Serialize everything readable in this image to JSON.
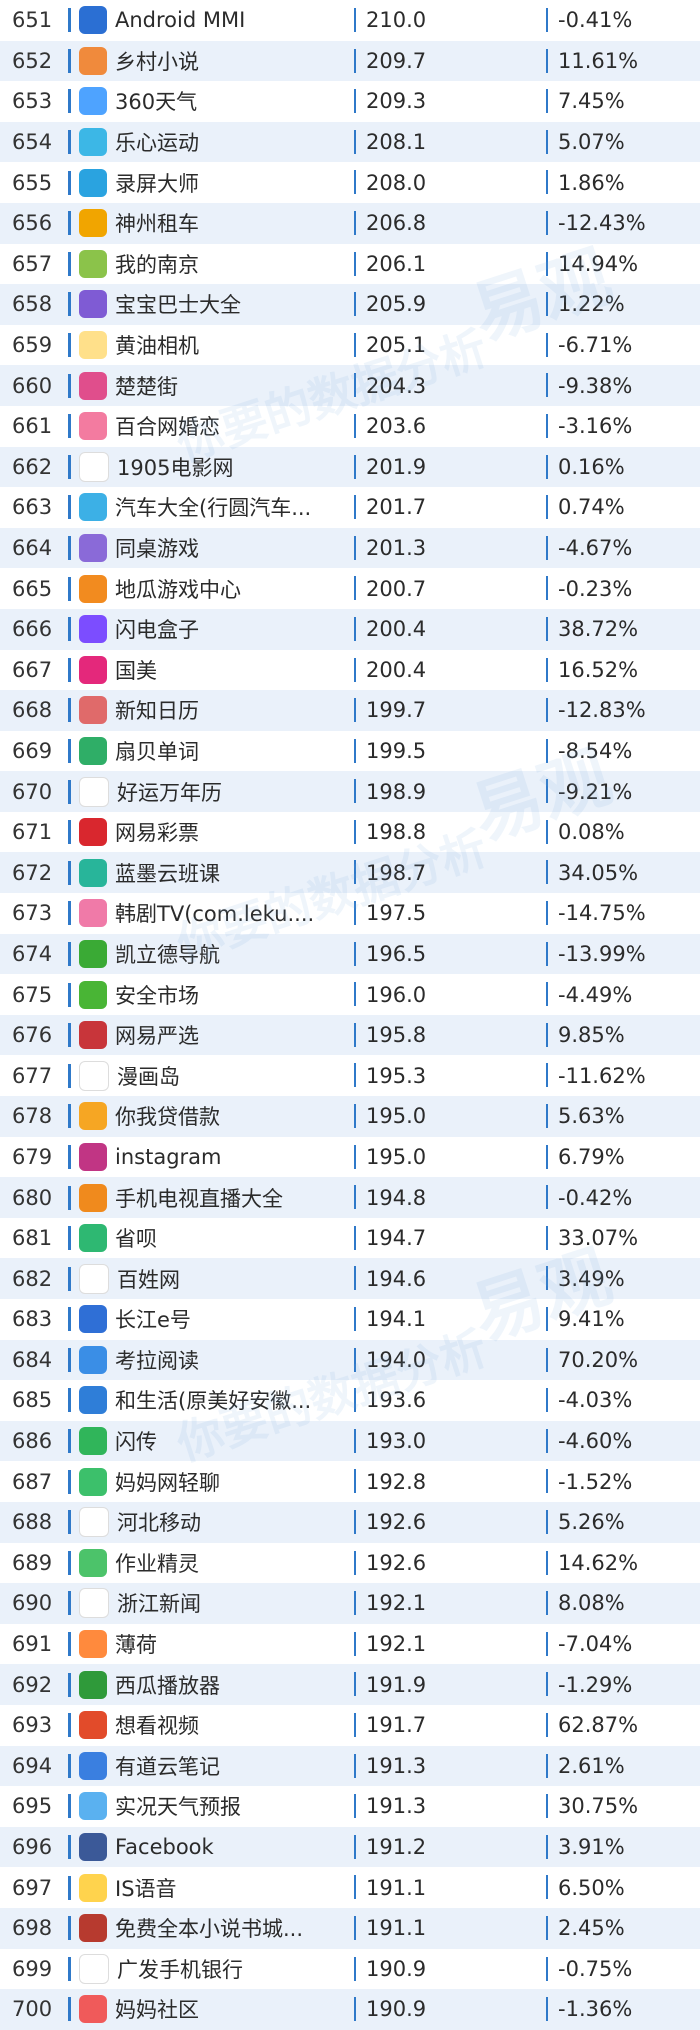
{
  "rows": [
    {
      "rank": "651",
      "name": "Android MMI",
      "value": "210.0",
      "change": "-0.41%",
      "icon": "android-mmi-icon",
      "color": "#2b6fd3"
    },
    {
      "rank": "652",
      "name": "乡村小说",
      "value": "209.7",
      "change": "11.61%",
      "icon": "book-icon",
      "color": "#f08a3c"
    },
    {
      "rank": "653",
      "name": "360天气",
      "value": "209.3",
      "change": "7.45%",
      "icon": "cloud-icon",
      "color": "#4ea3ff"
    },
    {
      "rank": "654",
      "name": "乐心运动",
      "value": "208.1",
      "change": "5.07%",
      "icon": "heartbeat-icon",
      "color": "#3cb7e6"
    },
    {
      "rank": "655",
      "name": "录屏大师",
      "value": "208.0",
      "change": "1.86%",
      "icon": "record-icon",
      "color": "#2aa3e0"
    },
    {
      "rank": "656",
      "name": "神州租车",
      "value": "206.8",
      "change": "-12.43%",
      "icon": "car-icon",
      "color": "#f1a500"
    },
    {
      "rank": "657",
      "name": "我的南京",
      "value": "206.1",
      "change": "14.94%",
      "icon": "flower-icon",
      "color": "#8bc34a"
    },
    {
      "rank": "658",
      "name": "宝宝巴士大全",
      "value": "205.9",
      "change": "1.22%",
      "icon": "panda-icon",
      "color": "#7f5bd4"
    },
    {
      "rank": "659",
      "name": "黄油相机",
      "value": "205.1",
      "change": "-6.71%",
      "icon": "butter-icon",
      "color": "#ffe08a"
    },
    {
      "rank": "660",
      "name": "楚楚街",
      "value": "204.3",
      "change": "-9.38%",
      "icon": "shop-icon",
      "color": "#e04e8c"
    },
    {
      "rank": "661",
      "name": "百合网婚恋",
      "value": "203.6",
      "change": "-3.16%",
      "icon": "lily-icon",
      "color": "#f37ba0"
    },
    {
      "rank": "662",
      "name": "1905电影网",
      "value": "201.9",
      "change": "0.16%",
      "icon": "film-icon",
      "color": "#ffffff"
    },
    {
      "rank": "663",
      "name": "汽车大全(行圆汽车...",
      "value": "201.7",
      "change": "0.74%",
      "icon": "car-guide-icon",
      "color": "#3cb0e6"
    },
    {
      "rank": "664",
      "name": "同桌游戏",
      "value": "201.3",
      "change": "-4.67%",
      "icon": "chat-icon",
      "color": "#8a6ad8"
    },
    {
      "rank": "665",
      "name": "地瓜游戏中心",
      "value": "200.7",
      "change": "-0.23%",
      "icon": "game-icon",
      "color": "#f28b1f"
    },
    {
      "rank": "666",
      "name": "闪电盒子",
      "value": "200.4",
      "change": "38.72%",
      "icon": "lightning-icon",
      "color": "#7c4dff"
    },
    {
      "rank": "667",
      "name": "国美",
      "value": "200.4",
      "change": "16.52%",
      "icon": "gome-icon",
      "color": "#e4287b"
    },
    {
      "rank": "668",
      "name": "新知日历",
      "value": "199.7",
      "change": "-12.83%",
      "icon": "calendar-icon",
      "color": "#e06a6a"
    },
    {
      "rank": "669",
      "name": "扇贝单词",
      "value": "199.5",
      "change": "-8.54%",
      "icon": "shell-icon",
      "color": "#2fae67"
    },
    {
      "rank": "670",
      "name": "好运万年历",
      "value": "198.9",
      "change": "-9.21%",
      "icon": "calendar29-icon",
      "color": "#ffffff"
    },
    {
      "rank": "671",
      "name": "网易彩票",
      "value": "198.8",
      "change": "0.08%",
      "icon": "lottery-icon",
      "color": "#d9272e"
    },
    {
      "rank": "672",
      "name": "蓝墨云班课",
      "value": "198.7",
      "change": "34.05%",
      "icon": "classroom-icon",
      "color": "#28b59a"
    },
    {
      "rank": "673",
      "name": "韩剧TV(com.leku....",
      "value": "197.5",
      "change": "-14.75%",
      "icon": "tv-icon",
      "color": "#f07aa8"
    },
    {
      "rank": "674",
      "name": "凯立德导航",
      "value": "196.5",
      "change": "-13.99%",
      "icon": "navigation-icon",
      "color": "#3aaa35"
    },
    {
      "rank": "675",
      "name": "安全市场",
      "value": "196.0",
      "change": "-4.49%",
      "icon": "market-icon",
      "color": "#49b535"
    },
    {
      "rank": "676",
      "name": "网易严选",
      "value": "195.8",
      "change": "9.85%",
      "icon": "yanxuan-icon",
      "color": "#c8353a"
    },
    {
      "rank": "677",
      "name": "漫画岛",
      "value": "195.3",
      "change": "-11.62%",
      "icon": "comic-icon",
      "color": "#ffffff"
    },
    {
      "rank": "678",
      "name": "你我贷借款",
      "value": "195.0",
      "change": "5.63%",
      "icon": "loan-icon",
      "color": "#f6a623"
    },
    {
      "rank": "679",
      "name": "instagram",
      "value": "195.0",
      "change": "6.79%",
      "icon": "instagram-icon",
      "color": "#c13584"
    },
    {
      "rank": "680",
      "name": "手机电视直播大全",
      "value": "194.8",
      "change": "-0.42%",
      "icon": "tv-live-icon",
      "color": "#f08a1d"
    },
    {
      "rank": "681",
      "name": "省呗",
      "value": "194.7",
      "change": "33.07%",
      "icon": "save-icon",
      "color": "#2eb872"
    },
    {
      "rank": "682",
      "name": "百姓网",
      "value": "194.6",
      "change": "3.49%",
      "icon": "baixing-icon",
      "color": "#ffffff"
    },
    {
      "rank": "683",
      "name": "长江e号",
      "value": "194.1",
      "change": "9.41%",
      "icon": "river-icon",
      "color": "#2f6fd6"
    },
    {
      "rank": "684",
      "name": "考拉阅读",
      "value": "194.0",
      "change": "70.20%",
      "icon": "koala-icon",
      "color": "#3a8ee6"
    },
    {
      "rank": "685",
      "name": "和生活(原美好安徽...",
      "value": "193.6",
      "change": "-4.03%",
      "icon": "life-icon",
      "color": "#2f7ed8"
    },
    {
      "rank": "686",
      "name": "闪传",
      "value": "193.0",
      "change": "-4.60%",
      "icon": "flash-transfer-icon",
      "color": "#30b55a"
    },
    {
      "rank": "687",
      "name": "妈妈网轻聊",
      "value": "192.8",
      "change": "-1.52%",
      "icon": "chat-bubble-icon",
      "color": "#3cc06b"
    },
    {
      "rank": "688",
      "name": "河北移动",
      "value": "192.6",
      "change": "5.26%",
      "icon": "mobile-icon",
      "color": "#ffffff"
    },
    {
      "rank": "689",
      "name": "作业精灵",
      "value": "192.6",
      "change": "14.62%",
      "icon": "homework-icon",
      "color": "#4cc36a"
    },
    {
      "rank": "690",
      "name": "浙江新闻",
      "value": "192.1",
      "change": "8.08%",
      "icon": "news-icon",
      "color": "#ffffff"
    },
    {
      "rank": "691",
      "name": "薄荷",
      "value": "192.1",
      "change": "-7.04%",
      "icon": "mint-icon",
      "color": "#ff8a3d"
    },
    {
      "rank": "692",
      "name": "西瓜播放器",
      "value": "191.9",
      "change": "-1.29%",
      "icon": "player-icon",
      "color": "#2f9a3a"
    },
    {
      "rank": "693",
      "name": "想看视频",
      "value": "191.7",
      "change": "62.87%",
      "icon": "video-icon",
      "color": "#e24b2a"
    },
    {
      "rank": "694",
      "name": "有道云笔记",
      "value": "191.3",
      "change": "2.61%",
      "icon": "note-icon",
      "color": "#3a7fe0"
    },
    {
      "rank": "695",
      "name": "实况天气预报",
      "value": "191.3",
      "change": "30.75%",
      "icon": "weather-icon",
      "color": "#5ab1f0"
    },
    {
      "rank": "696",
      "name": "Facebook",
      "value": "191.2",
      "change": "3.91%",
      "icon": "facebook-icon",
      "color": "#3b5998"
    },
    {
      "rank": "697",
      "name": "IS语音",
      "value": "191.1",
      "change": "6.50%",
      "icon": "voice-icon",
      "color": "#ffd34d"
    },
    {
      "rank": "698",
      "name": "免费全本小说书城...",
      "value": "191.1",
      "change": "2.45%",
      "icon": "novel-icon",
      "color": "#b73a2f"
    },
    {
      "rank": "699",
      "name": "广发手机银行",
      "value": "190.9",
      "change": "-0.75%",
      "icon": "bank-icon",
      "color": "#ffffff"
    },
    {
      "rank": "700",
      "name": "妈妈社区",
      "value": "190.9",
      "change": "-1.36%",
      "icon": "mom-icon",
      "color": "#f05a5a"
    }
  ],
  "colors": {
    "accent": "#2f79c9",
    "row_alt": "#eaf1fa"
  },
  "watermarks": [
    "易观",
    "你要的数据分析",
    "易观",
    "你要的数据分析",
    "易观",
    "你要的数据分析"
  ]
}
